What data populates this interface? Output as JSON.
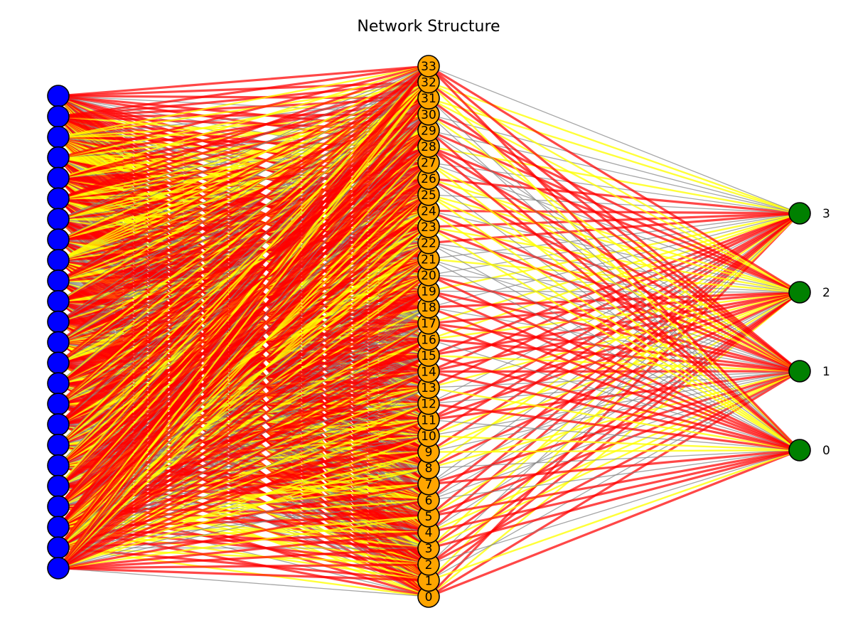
{
  "title": "Network Structure",
  "layers": {
    "input": {
      "count": 24,
      "color": "#0000ff"
    },
    "hidden": {
      "color": "#ffa500",
      "labels": [
        "0",
        "1",
        "2",
        "3",
        "4",
        "5",
        "6",
        "7",
        "8",
        "9",
        "10",
        "11",
        "12",
        "13",
        "14",
        "15",
        "16",
        "17",
        "18",
        "19",
        "20",
        "21",
        "22",
        "23",
        "24",
        "25",
        "26",
        "27",
        "28",
        "29",
        "30",
        "31",
        "32",
        "33"
      ]
    },
    "output": {
      "color": "#008000",
      "labels": [
        "0",
        "1",
        "2",
        "3"
      ]
    }
  },
  "edge_colors": {
    "strong": "#ff0000",
    "medium": "#ffff00",
    "weak": "#808080"
  },
  "node_stroke": "#000000"
}
